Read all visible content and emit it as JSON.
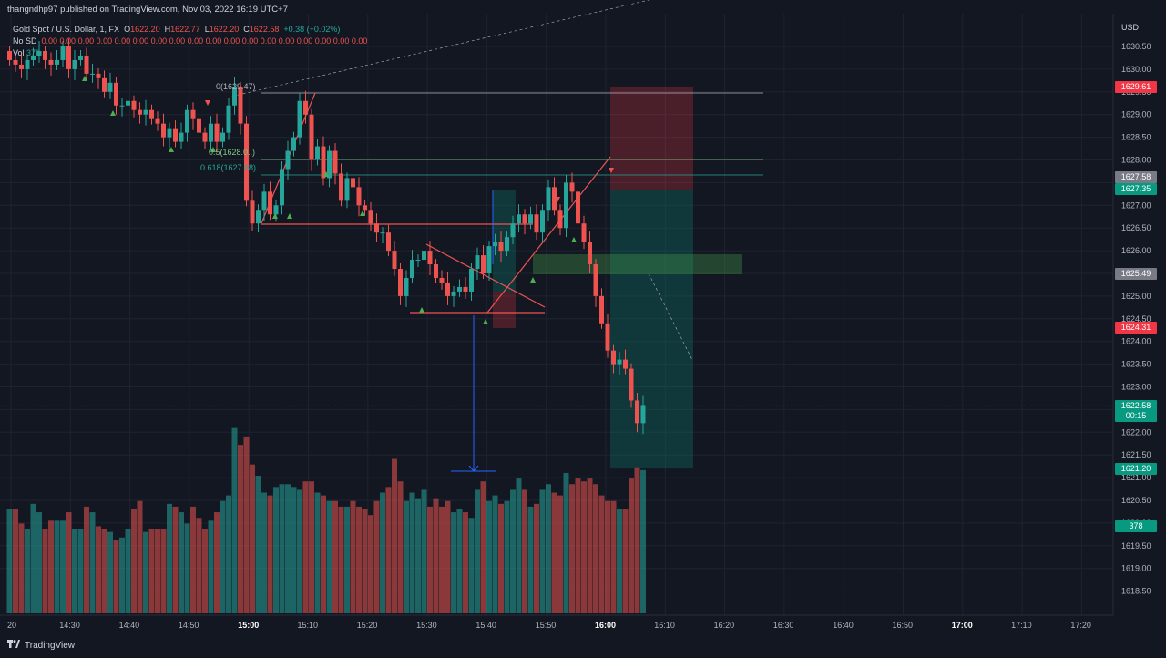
{
  "header": {
    "published": "thangndhp97 published on TradingView.com, Nov 03, 2022 16:19 UTC+7",
    "symbol": "Gold Spot / U.S. Dollar, 1, FX",
    "o_label": "O",
    "o": "1622.20",
    "h_label": "H",
    "h": "1622.77",
    "l_label": "L",
    "l": "1622.20",
    "c_label": "C",
    "c": "1622.58",
    "change": "+0.38 (+0.02%)",
    "indicator_name": "No SD",
    "indicator_values": "0.00  0.00  0.00  0.00  0.00  0.00  0.00  0.00  0.00  0.00  0.00  0.00  0.00  0.00  0.00  0.00  0.00  0.00",
    "volume_label": "Vol",
    "volume_value": "378"
  },
  "fib_labels": [
    "0(1629.47)",
    "0.5(1628.0..)",
    "0.618(1627.68)"
  ],
  "price_tags": [
    {
      "text": "1629.61",
      "color": "#f23645"
    },
    {
      "text": "1627.58",
      "color": "#787b86"
    },
    {
      "text": "1627.35",
      "color": "#089981"
    },
    {
      "text": "1625.49",
      "color": "#787b86"
    },
    {
      "text": "1624.31",
      "color": "#f23645"
    },
    {
      "text": "1622.58",
      "color": "#089981"
    },
    {
      "text": "00:15",
      "color": "#089981"
    },
    {
      "text": "1621.20",
      "color": "#089981"
    },
    {
      "text": "378",
      "color": "#089981"
    }
  ],
  "footer": {
    "brand": "TradingView",
    "logo": "tradingview-logo"
  },
  "chart_data": {
    "type": "candlestick",
    "symbol": "Gold Spot / U.S. Dollar",
    "interval": "1",
    "currency": "USD",
    "price_axis_labels": [
      "1630.50",
      "1630.00",
      "1629.50",
      "1629.00",
      "1628.50",
      "1628.00",
      "1627.50",
      "1627.00",
      "1626.50",
      "1626.00",
      "1625.50",
      "1625.00",
      "1624.50",
      "1624.00",
      "1623.50",
      "1623.00",
      "1622.50",
      "1622.00",
      "1621.50",
      "1621.00",
      "1620.50",
      "1620.00",
      "1619.50",
      "1619.00",
      "1618.50"
    ],
    "time_axis_labels": [
      "20",
      "14:30",
      "14:40",
      "14:50",
      "15:00",
      "15:10",
      "15:20",
      "15:30",
      "15:40",
      "15:50",
      "16:00",
      "16:10",
      "16:20",
      "16:30",
      "16:40",
      "16:50",
      "17:00",
      "17:10",
      "17:20"
    ],
    "bold_time_labels": [
      "15:00",
      "16:00",
      "17:00"
    ],
    "grid": true,
    "colors": {
      "up": "#26a69a",
      "down": "#ef5350",
      "background": "#131722"
    },
    "closes": [
      1630.2,
      1630.1,
      1630.0,
      1630.2,
      1630.3,
      1630.4,
      1630.2,
      1630.1,
      1630.2,
      1630.5,
      1630.0,
      1630.2,
      1630.3,
      1629.9,
      1629.9,
      1629.8,
      1629.5,
      1629.7,
      1629.2,
      1629.2,
      1629.3,
      1629.1,
      1629.0,
      1629.1,
      1628.9,
      1628.8,
      1628.5,
      1628.7,
      1628.4,
      1628.6,
      1629.1,
      1628.9,
      1628.6,
      1628.4,
      1628.8,
      1628.4,
      1628.6,
      1629.2,
      1629.6,
      1628.8,
      1627.1,
      1626.6,
      1626.9,
      1627.3,
      1626.8,
      1627.0,
      1627.8,
      1628.2,
      1628.5,
      1629.3,
      1629.0,
      1628.0,
      1628.3,
      1627.6,
      1628.2,
      1627.7,
      1627.1,
      1627.6,
      1627.4,
      1627.0,
      1626.9,
      1626.6,
      1626.4,
      1626.4,
      1626.0,
      1625.6,
      1625.0,
      1625.4,
      1625.8,
      1625.8,
      1626.0,
      1625.7,
      1625.4,
      1625.3,
      1625.0,
      1625.1,
      1625.2,
      1625.1,
      1625.6,
      1625.9,
      1625.5,
      1626.1,
      1626.2,
      1626.0,
      1626.3,
      1626.6,
      1626.8,
      1626.6,
      1626.8,
      1626.4,
      1626.9,
      1627.4,
      1626.9,
      1626.5,
      1627.5,
      1627.3,
      1626.6,
      1626.2,
      1625.7,
      1625.0,
      1624.4,
      1623.8,
      1623.5,
      1623.6,
      1623.4,
      1622.7,
      1622.2,
      1622.6
    ],
    "volumes": [
      370,
      370,
      320,
      300,
      390,
      360,
      300,
      330,
      330,
      330,
      360,
      300,
      300,
      380,
      360,
      310,
      300,
      290,
      260,
      270,
      300,
      370,
      400,
      290,
      300,
      300,
      300,
      390,
      380,
      360,
      320,
      380,
      340,
      300,
      330,
      360,
      400,
      420,
      660,
      600,
      630,
      530,
      490,
      430,
      420,
      450,
      460,
      460,
      450,
      440,
      470,
      470,
      430,
      420,
      400,
      400,
      380,
      380,
      400,
      380,
      370,
      350,
      400,
      430,
      450,
      550,
      470,
      400,
      430,
      410,
      440,
      380,
      410,
      380,
      400,
      360,
      370,
      360,
      340,
      440,
      470,
      400,
      420,
      390,
      400,
      440,
      480,
      440,
      380,
      390,
      440,
      460,
      430,
      420,
      500,
      460,
      480,
      470,
      480,
      460,
      420,
      400,
      400,
      370,
      370,
      480,
      520,
      510
    ],
    "volume_axis_max": 800,
    "annotations": [
      "fibonacci retracement 0 / 0.5 / 0.618",
      "long position box",
      "short position box",
      "trend lines",
      "projection arrow"
    ]
  }
}
